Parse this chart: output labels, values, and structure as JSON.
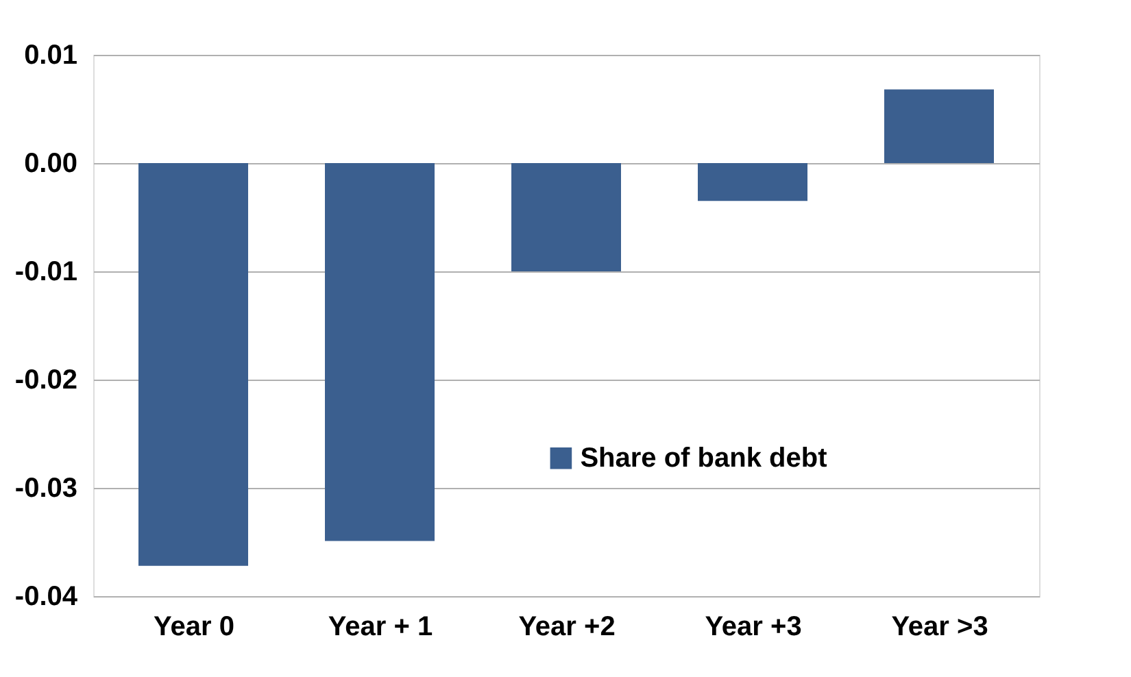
{
  "chart_data": {
    "type": "bar",
    "categories": [
      "Year 0",
      "Year  + 1",
      "Year +2",
      "Year +3",
      "Year >3"
    ],
    "series": [
      {
        "name": "Share of bank debt",
        "color": "#3b5f8f",
        "values": [
          -0.0372,
          -0.0349,
          -0.01,
          -0.0035,
          0.0068
        ]
      }
    ],
    "ylim": [
      -0.04,
      0.01
    ],
    "yticks": [
      0.01,
      {
        "value": 0,
        "label": "0.00"
      },
      -0.01,
      -0.02,
      -0.03,
      -0.04
    ],
    "grid": "y",
    "legend": "bottom right"
  }
}
